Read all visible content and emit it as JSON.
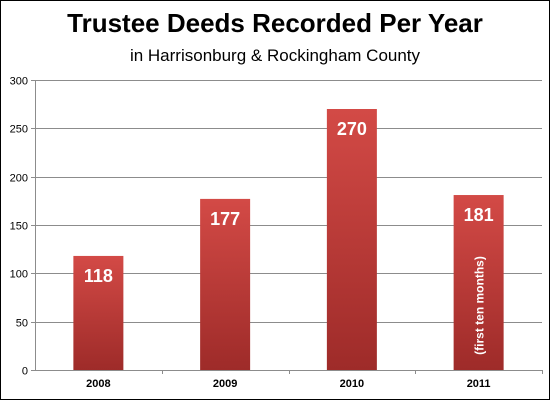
{
  "chart_data": {
    "type": "bar",
    "title": "Trustee Deeds Recorded Per Year",
    "subtitle": "in Harrisonburg & Rockingham County",
    "categories": [
      "2008",
      "2009",
      "2010",
      "2011"
    ],
    "values": [
      118,
      177,
      270,
      181
    ],
    "data_labels": [
      "118",
      "177",
      "270",
      "181"
    ],
    "bar_annotations": [
      "",
      "",
      "",
      "(first ten months)"
    ],
    "yticks": [
      0,
      50,
      100,
      150,
      200,
      250,
      300
    ],
    "ylim": [
      0,
      300
    ],
    "xlabel": "",
    "ylabel": "",
    "grid": true,
    "legend": "none",
    "colors": {
      "bar_light": "#d34a46",
      "bar_dark": "#9e2b29",
      "grid": "#8c8c8c",
      "axis": "#8c8c8c",
      "label_text": "#ffffff",
      "tick_text": "#000000"
    }
  }
}
